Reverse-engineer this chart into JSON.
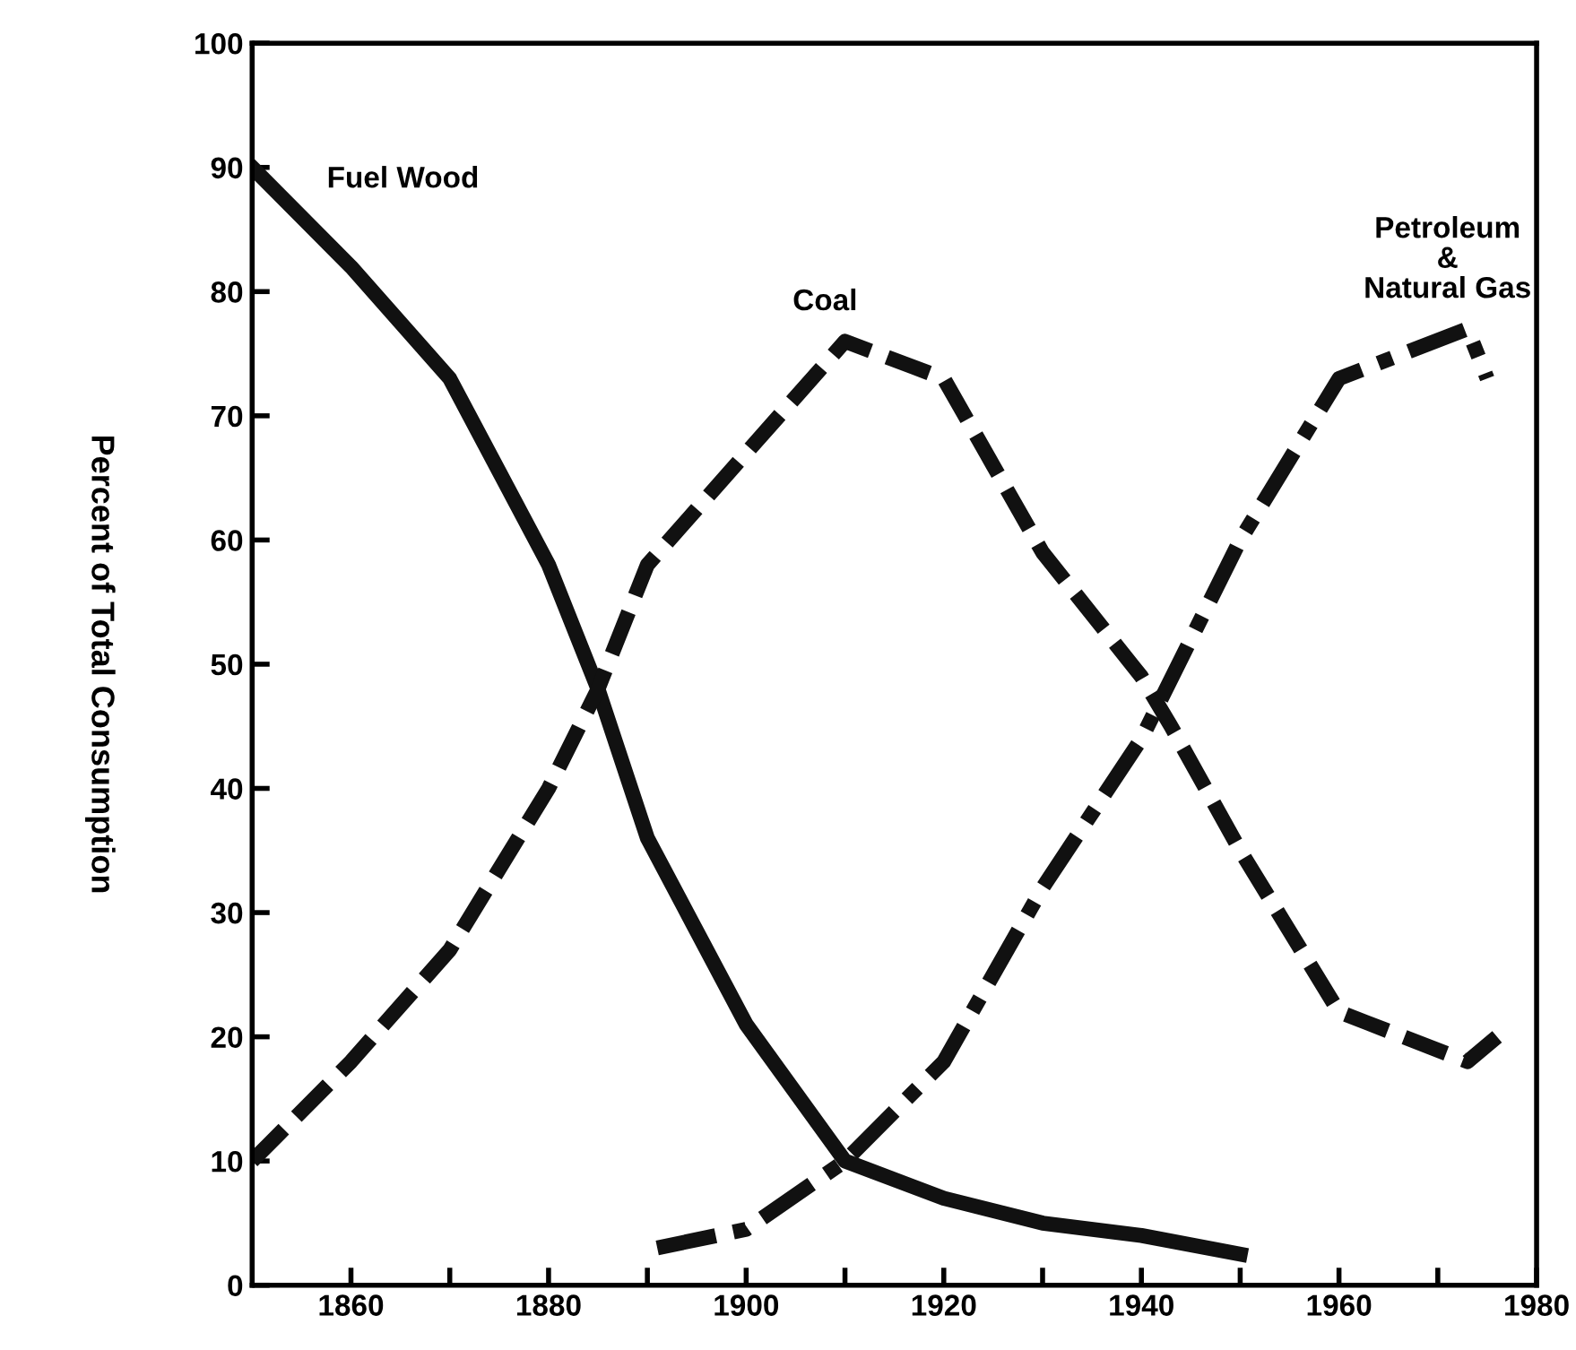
{
  "chart_data": {
    "type": "line",
    "ylabel": "Percent of Total Consumption",
    "xlim": [
      1850,
      1980
    ],
    "ylim": [
      0,
      100
    ],
    "xticks": [
      1860,
      {
        "value": 1870,
        "label": null
      },
      1880,
      {
        "value": 1890,
        "label": null
      },
      1900,
      {
        "value": 1910,
        "label": null
      },
      1920,
      {
        "value": 1930,
        "label": null
      },
      1940,
      {
        "value": 1950,
        "label": null
      },
      1960,
      {
        "value": 1970,
        "label": null
      },
      1980
    ],
    "yticks": [
      0,
      10,
      20,
      30,
      40,
      50,
      60,
      70,
      80,
      90,
      100
    ],
    "grid": false,
    "legend": false,
    "marker": "none",
    "series": [
      {
        "name": "Fuel Wood",
        "color": "#111111",
        "line_style": "solid",
        "x": [
          1850,
          1860,
          1870,
          1880,
          1885,
          1890,
          1900,
          1910,
          1920,
          1930,
          1940,
          1950
        ],
        "values": [
          90,
          82,
          73,
          58,
          48,
          36,
          21,
          10,
          7,
          5,
          4,
          2.5
        ]
      },
      {
        "name": "Coal",
        "color": "#111111",
        "line_style": "dashed",
        "x": [
          1850,
          1860,
          1870,
          1880,
          1885,
          1890,
          1900,
          1910,
          1920,
          1925,
          1930,
          1940,
          1943,
          1950,
          1960,
          1973,
          1976
        ],
        "values": [
          10,
          18,
          27,
          40,
          48,
          58,
          67,
          76,
          73,
          66,
          59,
          49,
          45,
          35,
          22,
          18,
          20
        ]
      },
      {
        "name": "Petroleum\n&\nNatural Gas",
        "color": "#111111",
        "line_style": "dashdot",
        "x": [
          1891,
          1900,
          1910,
          1920,
          1930,
          1940,
          1950,
          1960,
          1973,
          1975
        ],
        "values": [
          3,
          4.5,
          10,
          18,
          32,
          44,
          60,
          73,
          77,
          73
        ]
      }
    ]
  }
}
